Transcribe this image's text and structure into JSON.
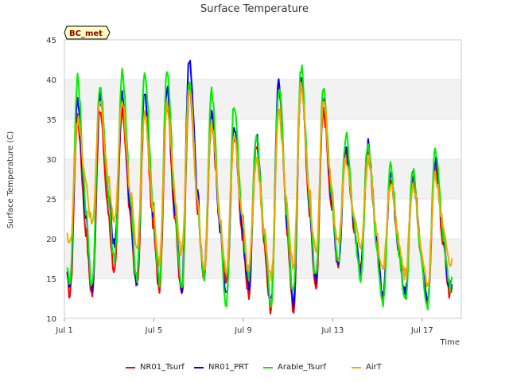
{
  "chart_data": {
    "type": "line",
    "title": "Surface Temperature",
    "xlabel": "Time",
    "ylabel": "Surface Temperature (C)",
    "badge": "BC_met",
    "ylim": [
      10,
      45
    ],
    "xlim": [
      1,
      18.75
    ],
    "y_ticks": [
      10,
      15,
      20,
      25,
      30,
      35,
      40,
      45
    ],
    "x_ticks": [
      {
        "value": 1,
        "label": "Jul 1"
      },
      {
        "value": 5,
        "label": "Jul 5"
      },
      {
        "value": 9,
        "label": "Jul 9"
      },
      {
        "value": 13,
        "label": "Jul 13"
      },
      {
        "value": 17,
        "label": "Jul 17"
      }
    ],
    "grid": "horizontal alternating bands",
    "legend_position": "bottom",
    "days": [
      1,
      2,
      3,
      4,
      5,
      6,
      7,
      8,
      9,
      10,
      11,
      12,
      13,
      14,
      15,
      16,
      17,
      18
    ],
    "series": [
      {
        "name": "NR01_Tsurf",
        "color": "#ff0000",
        "max": [
          35,
          36,
          36,
          36,
          37,
          39,
          34,
          33,
          32,
          39,
          40,
          36,
          31,
          31,
          28,
          28,
          29
        ],
        "min": [
          13,
          13,
          16,
          14,
          14,
          13,
          15,
          15,
          13,
          11,
          11,
          14,
          17,
          16,
          13,
          13,
          12,
          13
        ]
      },
      {
        "name": "NR01_PRT",
        "color": "#0000ff",
        "max": [
          37,
          38,
          38,
          38,
          39,
          42.5,
          35.5,
          34,
          33,
          39.5,
          40.5,
          38,
          31.5,
          32,
          28,
          28,
          30
        ],
        "min": [
          14,
          14,
          19,
          15,
          15,
          14,
          15.5,
          13,
          14,
          12,
          12,
          15,
          17,
          16,
          13,
          13,
          12,
          14
        ]
      },
      {
        "name": "Arable_Tsurf",
        "color": "#00ee00",
        "max": [
          40,
          39.5,
          41,
          41.5,
          41,
          40,
          38.5,
          36.5,
          33,
          39,
          41.5,
          39,
          33,
          32,
          29,
          28.5,
          31.5
        ],
        "min": [
          14,
          14,
          17.5,
          15,
          14.5,
          14,
          15,
          12,
          15,
          12,
          13,
          15,
          17,
          15,
          12,
          12.5,
          11.5,
          14
        ]
      },
      {
        "name": "AirT",
        "color": "#f0a800",
        "max": [
          35,
          37,
          37,
          36,
          37,
          39,
          34.5,
          33,
          30,
          36,
          39,
          37,
          30,
          30,
          27,
          27,
          28
        ],
        "min": [
          19,
          22,
          22,
          19,
          17,
          18,
          16,
          15.5,
          16,
          15,
          16.5,
          18,
          19.5,
          19,
          16,
          15.5,
          14,
          17
        ]
      }
    ]
  }
}
